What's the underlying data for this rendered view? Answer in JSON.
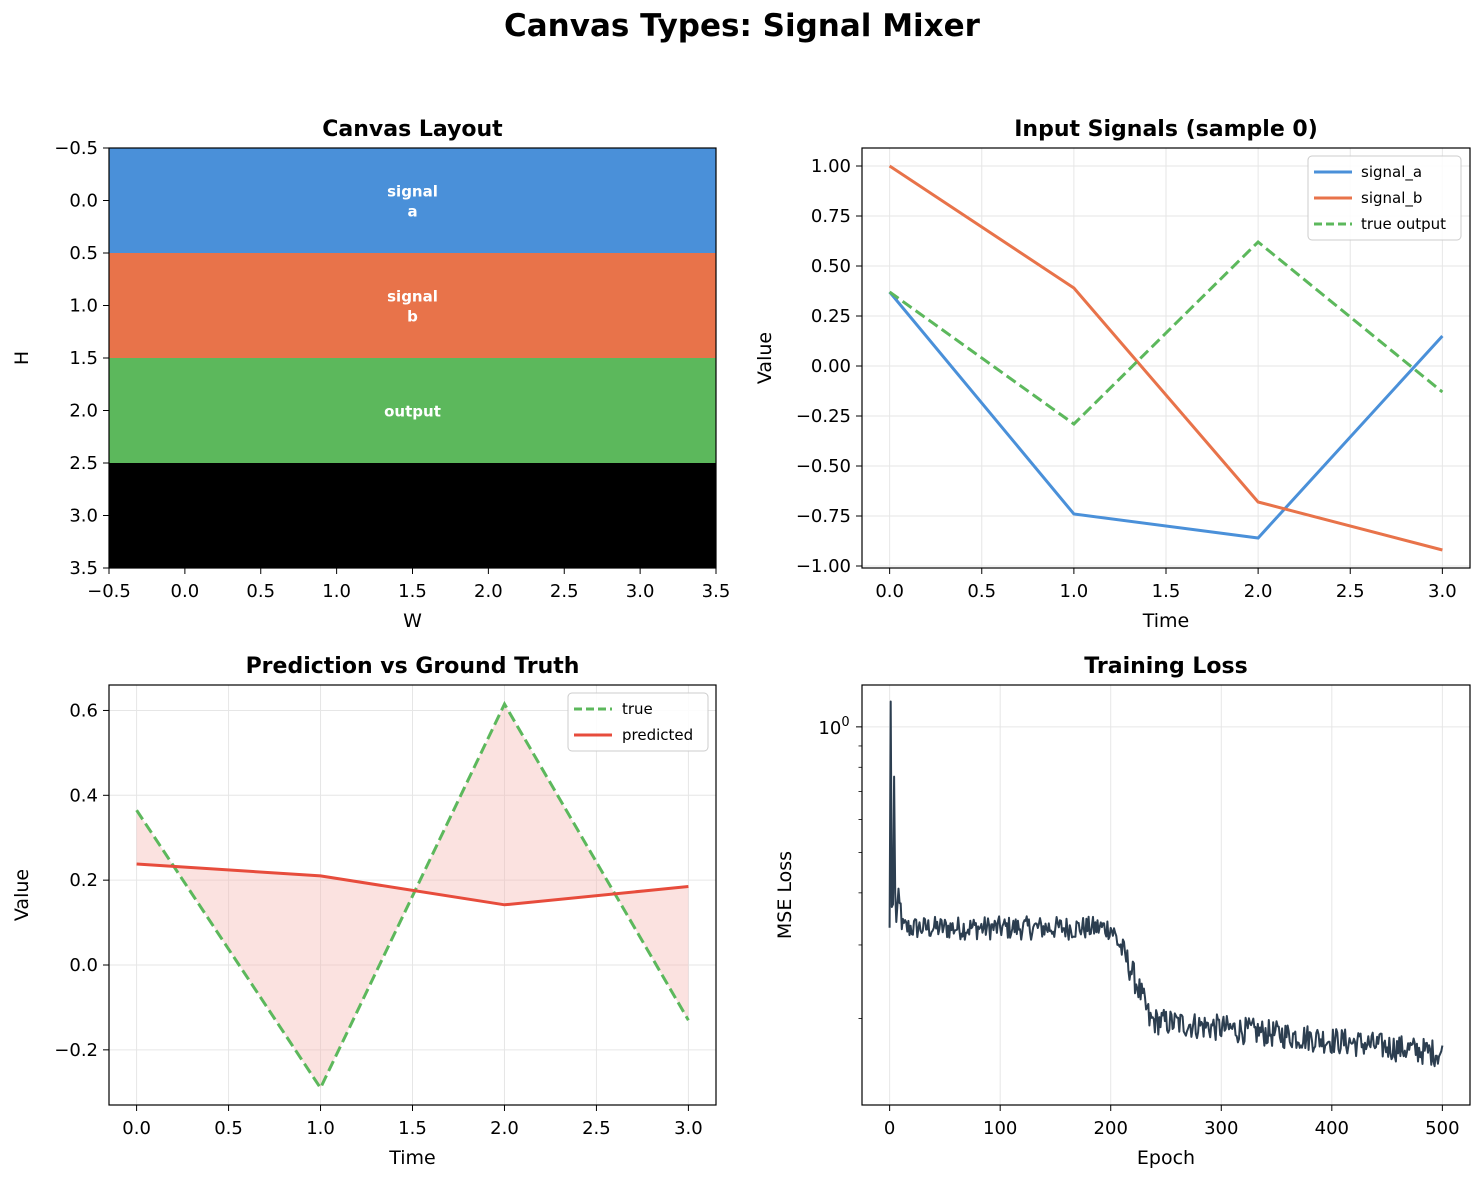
{
  "figure_title": "Canvas Types: Signal Mixer",
  "colors": {
    "signal_a": "#4a90d9",
    "signal_b": "#e8734a",
    "output": "#5cb85c",
    "empty": "#000000",
    "predicted": "#e74c3c",
    "fill_error": "#f5b7b1",
    "loss": "#2c3e50",
    "grid": "#e6e6e6"
  },
  "chart_data": [
    {
      "type": "heatmap",
      "title": "Canvas Layout",
      "xlabel": "W",
      "ylabel": "H",
      "xlim": [
        -0.5,
        3.5
      ],
      "ylim": [
        3.5,
        -0.5
      ],
      "xticks": [
        "-0.5",
        "0.0",
        "0.5",
        "1.0",
        "1.5",
        "2.0",
        "2.5",
        "3.0",
        "3.5"
      ],
      "yticks": [
        "-0.5",
        "0.0",
        "0.5",
        "1.0",
        "1.5",
        "2.0",
        "2.5",
        "3.0",
        "3.5"
      ],
      "rows": [
        {
          "row": 0,
          "label": "signal\na",
          "color": "#4a90d9"
        },
        {
          "row": 1,
          "label": "signal\nb",
          "color": "#e8734a"
        },
        {
          "row": 2,
          "label": "output",
          "color": "#5cb85c"
        },
        {
          "row": 3,
          "label": "",
          "color": "#000000"
        }
      ]
    },
    {
      "type": "line",
      "title": "Input Signals (sample 0)",
      "xlabel": "Time",
      "ylabel": "Value",
      "xlim": [
        -0.15,
        3.15
      ],
      "ylim": [
        -1.01,
        1.09
      ],
      "xticks": [
        0.0,
        0.5,
        1.0,
        1.5,
        2.0,
        2.5,
        3.0
      ],
      "yticks": [
        -1.0,
        -0.75,
        -0.5,
        -0.25,
        0.0,
        0.25,
        0.5,
        0.75,
        1.0
      ],
      "legend_position": "top-right",
      "x": [
        0,
        1,
        2,
        3
      ],
      "series": [
        {
          "name": "signal_a",
          "values": [
            0.37,
            -0.74,
            -0.86,
            0.15
          ],
          "style": "solid",
          "color": "#4a90d9"
        },
        {
          "name": "signal_b",
          "values": [
            1.0,
            0.39,
            -0.68,
            -0.92
          ],
          "style": "solid",
          "color": "#e8734a"
        },
        {
          "name": "true output",
          "values": [
            0.37,
            -0.29,
            0.62,
            -0.13
          ],
          "style": "dashed",
          "color": "#5cb85c"
        }
      ]
    },
    {
      "type": "line",
      "title": "Prediction vs Ground Truth",
      "xlabel": "Time",
      "ylabel": "Value",
      "xlim": [
        -0.15,
        3.15
      ],
      "ylim": [
        -0.33,
        0.66
      ],
      "xticks": [
        0.0,
        0.5,
        1.0,
        1.5,
        2.0,
        2.5,
        3.0
      ],
      "yticks": [
        -0.2,
        0.0,
        0.2,
        0.4,
        0.6
      ],
      "legend_position": "top-right",
      "x": [
        0,
        1,
        2,
        3
      ],
      "series": [
        {
          "name": "true",
          "values": [
            0.365,
            -0.29,
            0.615,
            -0.13
          ],
          "style": "dashed",
          "color": "#5cb85c"
        },
        {
          "name": "predicted",
          "values": [
            0.238,
            0.21,
            0.142,
            0.185
          ],
          "style": "solid",
          "color": "#e74c3c"
        }
      ],
      "fill_between": [
        "true",
        "predicted"
      ]
    },
    {
      "type": "line",
      "title": "Training Loss",
      "xlabel": "Epoch",
      "ylabel": "MSE Loss",
      "yscale": "log",
      "xlim": [
        -25,
        525
      ],
      "ylim": [
        0.124,
        1.26
      ],
      "xticks": [
        0,
        100,
        200,
        300,
        400,
        500
      ],
      "ytick_major_label": "10^0",
      "color": "#2c3e50",
      "segments": [
        {
          "from_epoch": 0,
          "to_epoch": 10,
          "level": 0.36,
          "note": "initial spikes"
        },
        {
          "from_epoch": 10,
          "to_epoch": 200,
          "level": 0.33
        },
        {
          "from_epoch": 200,
          "to_epoch": 235,
          "level": "transition"
        },
        {
          "from_epoch": 235,
          "to_epoch": 500,
          "level": "0.20 decaying to 0.165"
        }
      ],
      "spikes": [
        {
          "epoch": 1,
          "value": 1.15
        },
        {
          "epoch": 2,
          "value": 0.37
        },
        {
          "epoch": 4,
          "value": 0.76
        },
        {
          "epoch": 5,
          "value": 0.4
        }
      ]
    }
  ]
}
